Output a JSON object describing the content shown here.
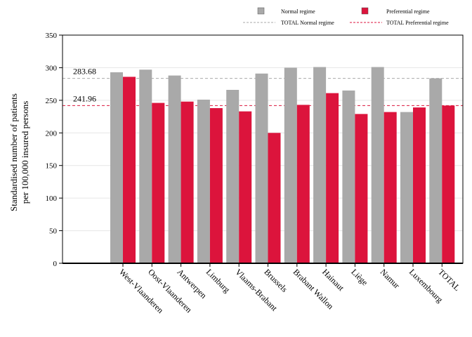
{
  "chart_data": {
    "type": "bar",
    "ylabel_line1": "Standardised number of patients",
    "ylabel_line2": "per 100,000 insured persons",
    "ylim": [
      0,
      350
    ],
    "yticks": [
      0,
      50,
      100,
      150,
      200,
      250,
      300,
      350
    ],
    "categories": [
      "West-Vlaanderen",
      "Oost-Vlaanderen",
      "Antwerpen",
      "Limburg",
      "Vlaams-Brabant",
      "Brussels",
      "Brabant Wallon",
      "Hainaut",
      "Liège",
      "Namur",
      "Luxembourg",
      "TOTAL"
    ],
    "series": [
      {
        "name": "Normal regime",
        "color": "#a9a9a9",
        "values": [
          293,
          297,
          288,
          251,
          266,
          291,
          300,
          301,
          265,
          301,
          232,
          283.68
        ]
      },
      {
        "name": "Preferential regime",
        "color": "#dc143c",
        "values": [
          286,
          246,
          248,
          238,
          233,
          200,
          243,
          261,
          229,
          232,
          239,
          241.96
        ]
      }
    ],
    "reference_lines": [
      {
        "name": "TOTAL Normal regime",
        "value": 283.68,
        "label": "283.68",
        "color": "#a9a9a9"
      },
      {
        "name": "TOTAL Preferential regime",
        "value": 241.96,
        "label": "241.96",
        "color": "#dc143c"
      }
    ],
    "legend_position": "top-right",
    "grid": true
  }
}
